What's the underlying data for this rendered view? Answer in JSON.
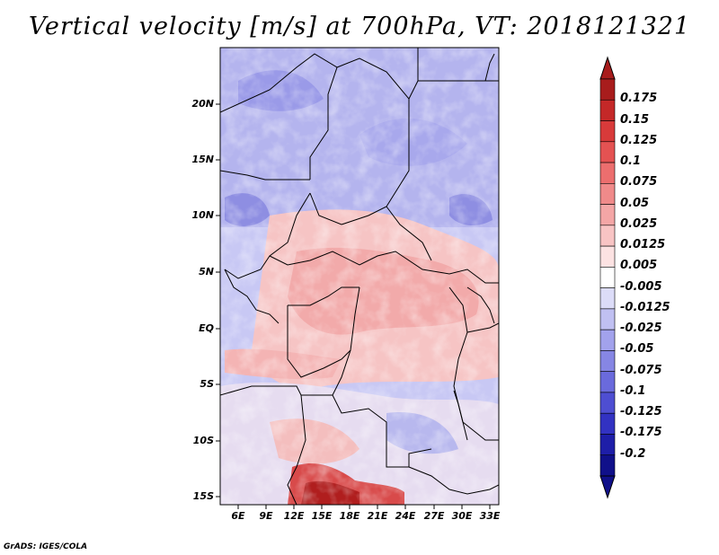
{
  "title": "Vertical velocity [m/s] at 700hPa, VT: 2018121321",
  "footer": "GrADS: IGES/COLA",
  "latitude_labels": [
    "20N",
    "15N",
    "10N",
    "5N",
    "EQ",
    "5S",
    "10S",
    "15S"
  ],
  "longitude_labels": [
    "6E",
    "9E",
    "12E",
    "15E",
    "18E",
    "21E",
    "24E",
    "27E",
    "30E",
    "33E"
  ],
  "colorbar": {
    "labels": [
      "0.175",
      "0.15",
      "0.125",
      "0.1",
      "0.075",
      "0.05",
      "0.025",
      "0.0125",
      "0.005",
      "-0.005",
      "-0.0125",
      "-0.025",
      "-0.05",
      "-0.075",
      "-0.1",
      "-0.125",
      "-0.175",
      "-0.2"
    ],
    "colors": [
      "#a81c1c",
      "#c42828",
      "#d83a3a",
      "#e45252",
      "#ec6e6e",
      "#f08a8a",
      "#f4a6a6",
      "#f8c4c4",
      "#fce2e2",
      "#ffffff",
      "#dcdcf8",
      "#c0c0f2",
      "#a2a2ec",
      "#8686e4",
      "#6a6adc",
      "#4e4ed2",
      "#3232c2",
      "#1e1ea8",
      "#10108a"
    ]
  },
  "colors": {
    "positive_accent": "#b01e1e",
    "negative_accent": "#1a1a9a",
    "background": "#ffffff"
  }
}
